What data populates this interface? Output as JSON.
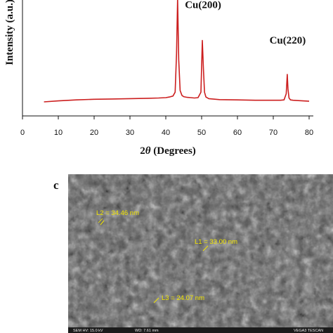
{
  "chart_data": {
    "type": "line",
    "ylabel": "Intensity (a.u.)",
    "xlabel_prefix": "2",
    "xlabel_theta": "θ",
    "xlabel_suffix": " (Degrees)",
    "xlim": [
      0,
      80
    ],
    "xticks": [
      0,
      10,
      20,
      30,
      40,
      50,
      60,
      70,
      80
    ],
    "line_color": "#cc1f1f",
    "baseline_level": 0.2,
    "series": [
      {
        "x": [
          6,
          10,
          15,
          20,
          25,
          30,
          35,
          38,
          40,
          41,
          42,
          42.6,
          43.0,
          43.3,
          43.6,
          44.0,
          44.5,
          45,
          46,
          47,
          48,
          49,
          49.8,
          50.2,
          50.5,
          50.8,
          51.2,
          52,
          55,
          60,
          65,
          70,
          72,
          73,
          73.6,
          73.9,
          74.1,
          74.4,
          74.8,
          75.5,
          77,
          80
        ],
        "y": [
          0.0,
          0.03,
          0.06,
          0.08,
          0.09,
          0.1,
          0.11,
          0.12,
          0.13,
          0.15,
          0.18,
          0.3,
          1.5,
          3.2,
          1.3,
          0.35,
          0.2,
          0.16,
          0.14,
          0.13,
          0.12,
          0.13,
          0.3,
          1.9,
          1.0,
          0.3,
          0.15,
          0.1,
          0.07,
          0.06,
          0.05,
          0.05,
          0.05,
          0.06,
          0.25,
          0.85,
          0.4,
          0.12,
          0.06,
          0.05,
          0.04,
          0.02
        ]
      }
    ],
    "annotations": [
      {
        "text": "Cu(200)",
        "x": 50.4,
        "y": 2.9
      },
      {
        "text": "Cu(220)",
        "x": 74.0,
        "y": 1.8
      }
    ]
  },
  "panel_c": {
    "label": "c",
    "measurements": [
      {
        "text": "L2 = 34.46 nm"
      },
      {
        "text": "L1 = 33.00 nm"
      },
      {
        "text": "L3 = 24.07 nm"
      }
    ],
    "info_bar": [
      "SEM HV: 15.0 kV",
      "WD: 7.61 mm",
      "",
      "VEGA3 TESCAN"
    ]
  }
}
